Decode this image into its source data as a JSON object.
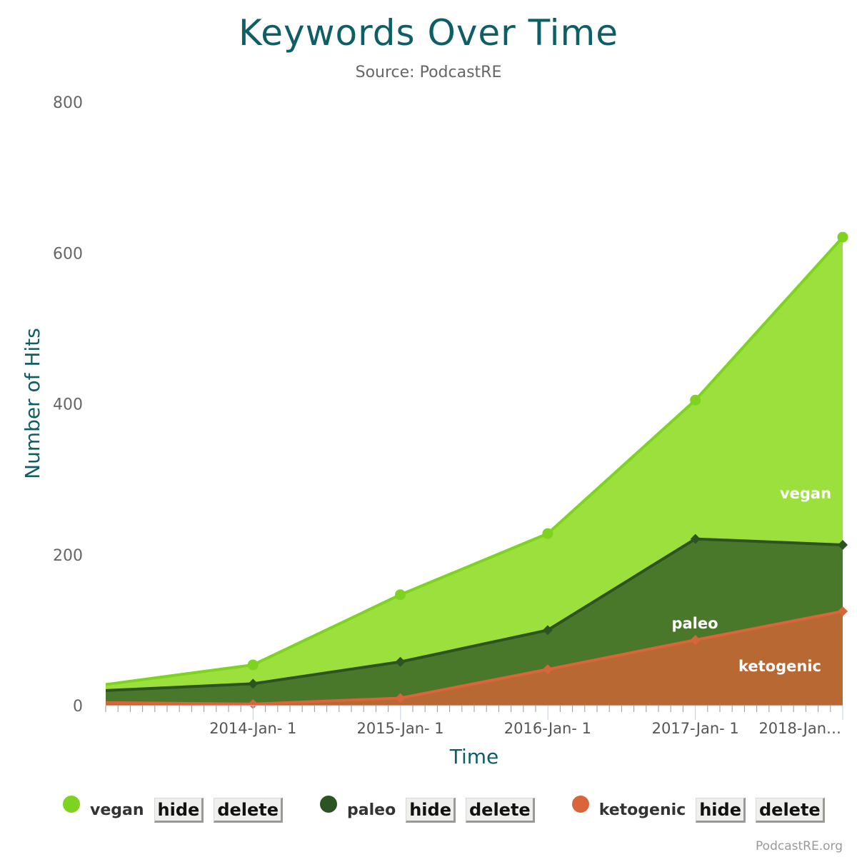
{
  "chart_data": {
    "type": "area",
    "stacked": true,
    "title": "Keywords Over Time",
    "subtitle": "Source: PodcastRE",
    "xlabel": "Time",
    "ylabel": "Number of Hits",
    "ylim": [
      0,
      800
    ],
    "yticks": [
      "0",
      "200",
      "400",
      "600",
      "800"
    ],
    "xtick_labels": [
      "2014-Jan- 1",
      "2015-Jan- 1",
      "2016-Jan- 1",
      "2017-Jan- 1",
      "2018-Jan…"
    ],
    "x_dates": [
      "2013-01-01",
      "2014-01-01",
      "2015-01-01",
      "2016-01-01",
      "2017-01-01",
      "2018-01-01"
    ],
    "grid": false,
    "legend_position": "bottom",
    "credit": "PodcastRE.org",
    "series": [
      {
        "name": "ketogenic",
        "color": "#d9653b",
        "fill": "#b86832",
        "marker": "diamond",
        "values": [
          4,
          2,
          10,
          48,
          87,
          125
        ]
      },
      {
        "name": "paleo",
        "color": "#2d5322",
        "fill": "#4a782b",
        "marker": "diamond",
        "values": [
          16,
          27,
          48,
          52,
          134,
          88
        ]
      },
      {
        "name": "vegan",
        "color": "#7ed321",
        "fill": "#9ce03d",
        "marker": "circle",
        "values": [
          8,
          25,
          89,
          128,
          184,
          408
        ]
      }
    ]
  },
  "legend": {
    "items": [
      {
        "label": "vegan",
        "color": "#7ed321",
        "hide_label": "hide",
        "delete_label": "delete"
      },
      {
        "label": "paleo",
        "color": "#2d5322",
        "hide_label": "hide",
        "delete_label": "delete"
      },
      {
        "label": "ketogenic",
        "color": "#d9653b",
        "hide_label": "hide",
        "delete_label": "delete"
      }
    ]
  }
}
